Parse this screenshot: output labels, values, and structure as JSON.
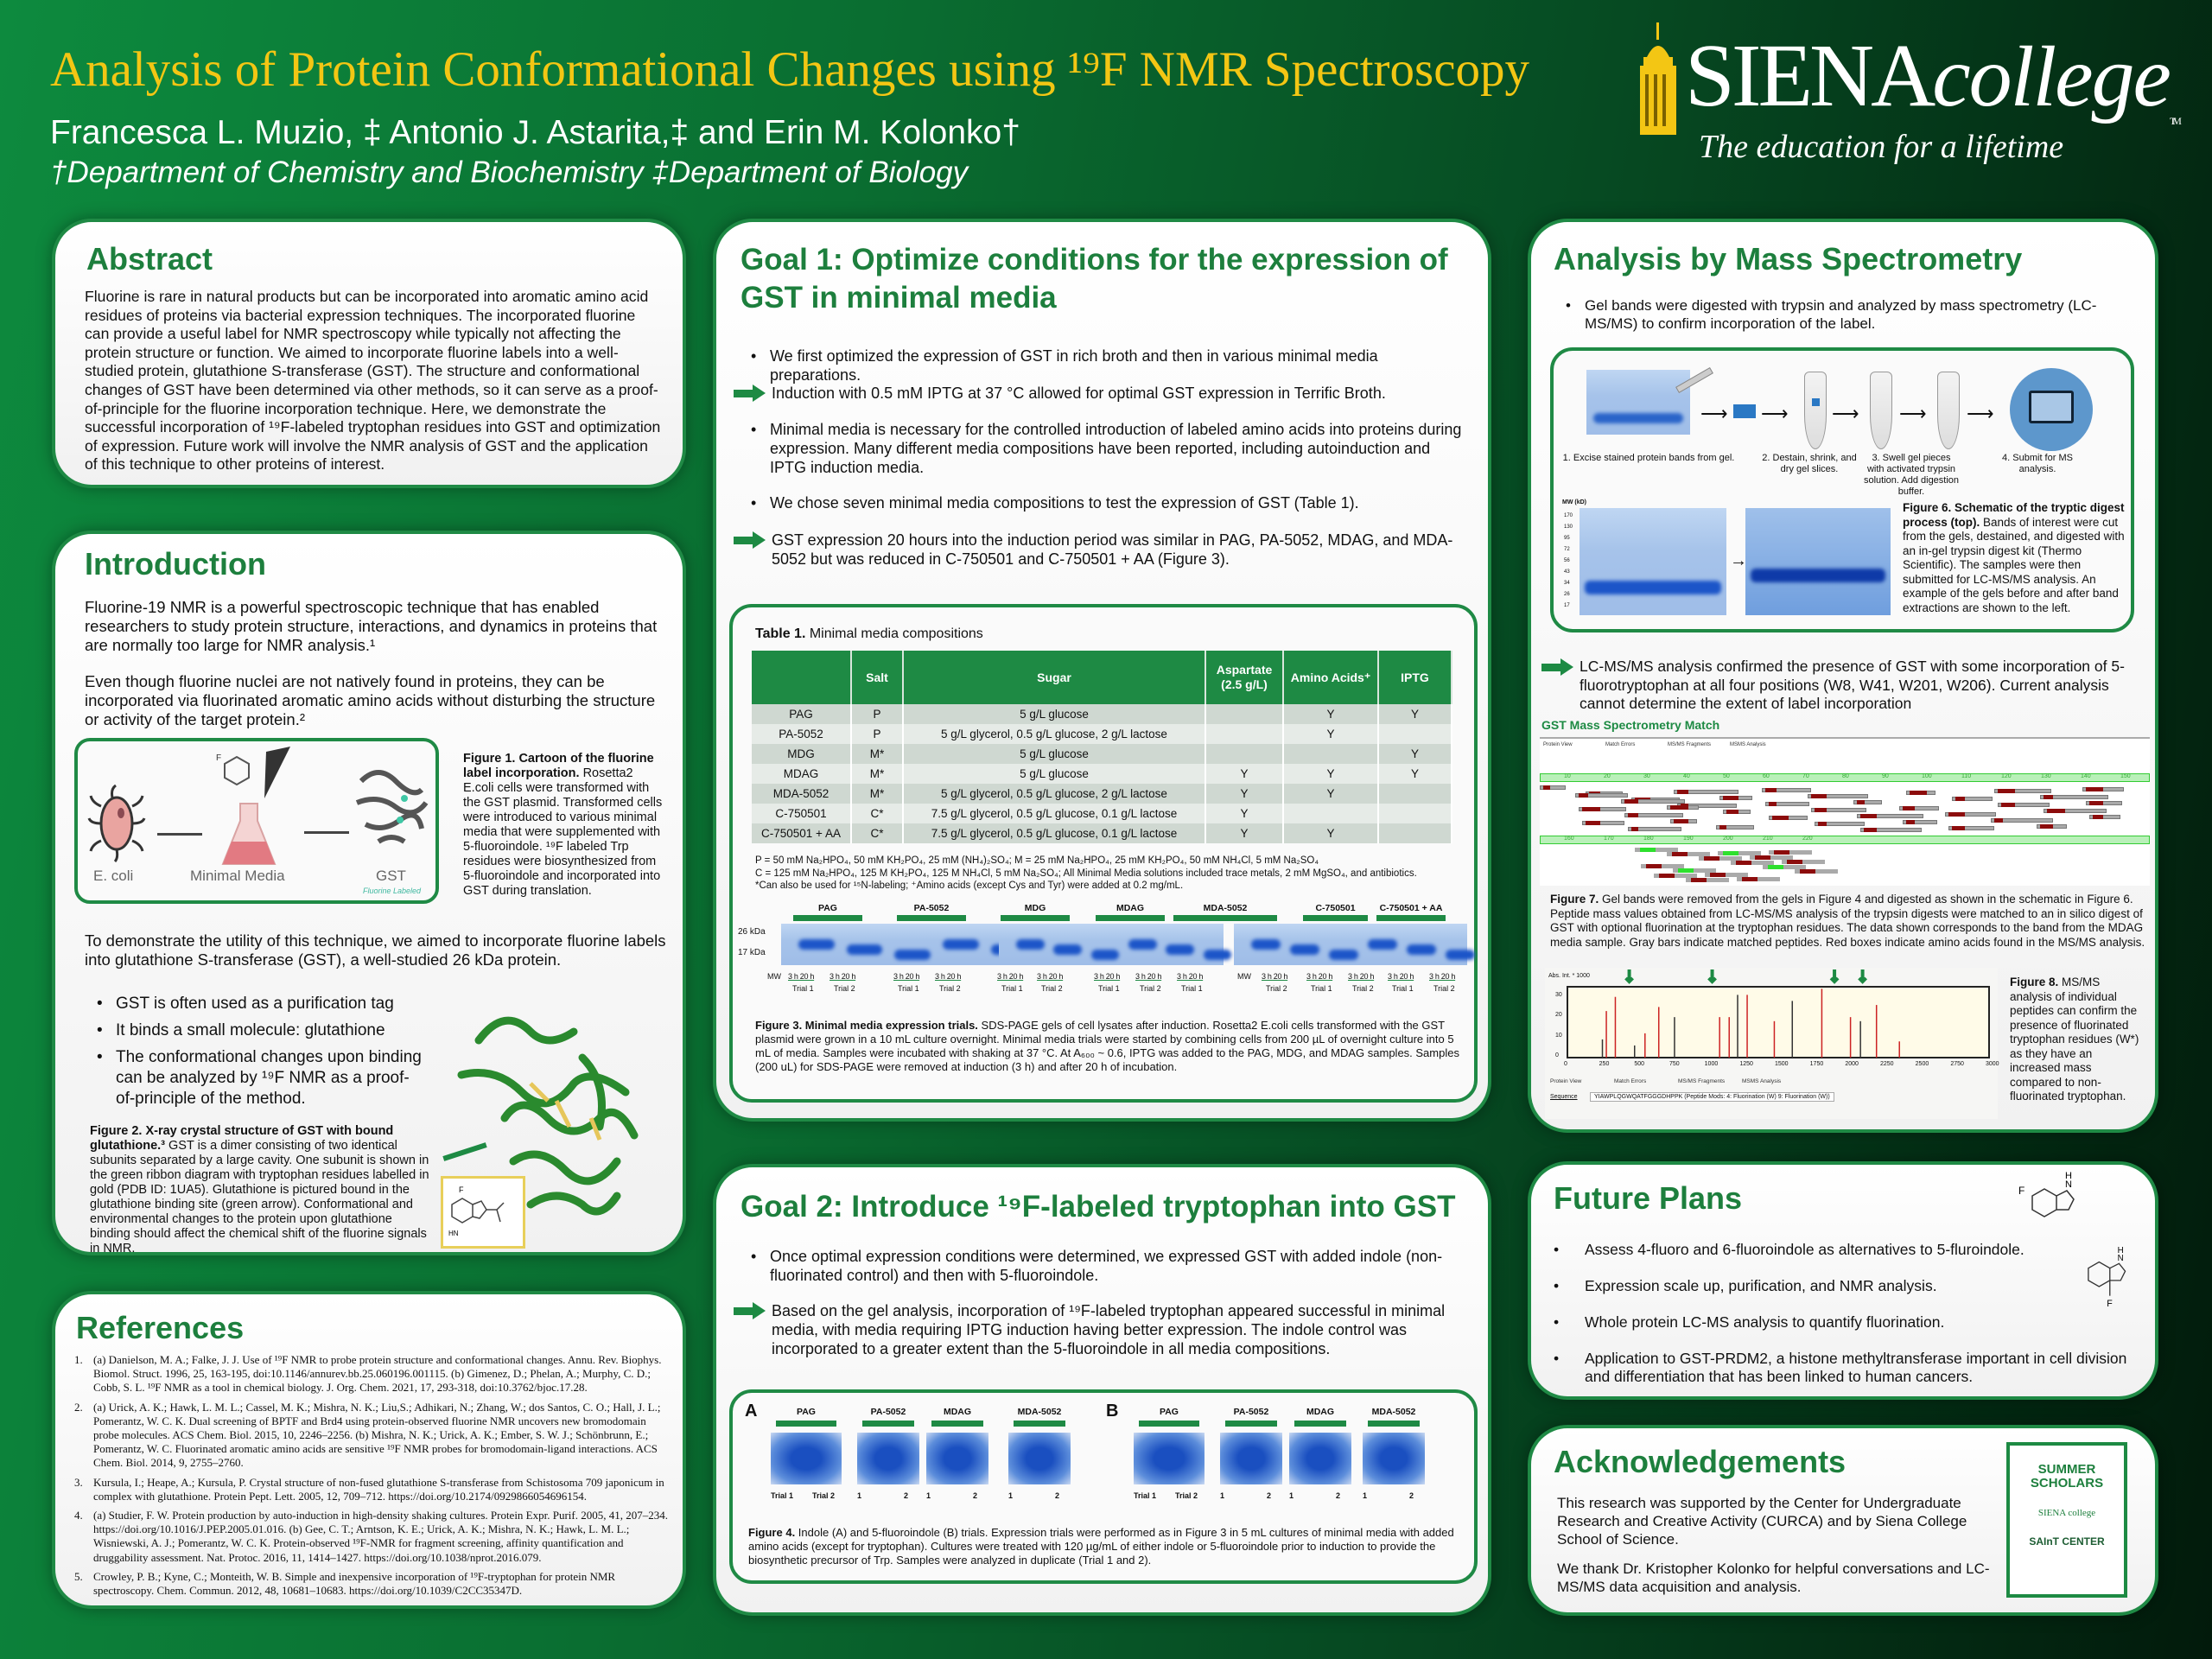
{
  "header": {
    "title": "Analysis of Protein Conformational Changes using ¹⁹F NMR Spectroscopy",
    "authors": "Francesca L. Muzio, ‡ Antonio J. Astarita,‡ and Erin M. Kolonko†",
    "departments": "†Department of Chemistry and Biochemistry ‡Department of Biology",
    "logo_word": "SIENA",
    "logo_word2": "college",
    "logo_tm": "TM",
    "tagline": "The education for a lifetime"
  },
  "colors": {
    "green": "#1d7f3d",
    "gold": "#f3c614",
    "border": "#1f8a45"
  },
  "abstract": {
    "title": "Abstract",
    "text": "Fluorine is rare in natural products but can be incorporated into aromatic amino acid residues of proteins via bacterial expression techniques. The incorporated fluorine can provide a useful label for NMR spectroscopy while typically not affecting the protein structure or function. We aimed to incorporate fluorine labels into a well-studied protein, glutathione S-transferase (GST). The structure and conformational changes of GST have been determined via other methods, so it can serve as a proof-of-principle for the fluorine incorporation technique. Here, we demonstrate the successful incorporation of ¹⁹F-labeled tryptophan residues into GST and optimization of expression. Future work will involve the NMR analysis of GST and the application of this technique to other proteins of interest."
  },
  "introduction": {
    "title": "Introduction",
    "p1": "Fluorine-19 NMR is a powerful spectroscopic technique that has enabled researchers to study protein structure, interactions, and dynamics in proteins that are normally too large for NMR analysis.¹",
    "p2": "Even though fluorine nuclei are not natively found in proteins, they can be incorporated via fluorinated aromatic amino acids without disturbing the structure or activity of the target protein.²",
    "fig1": {
      "ecoli": "E. coli",
      "media": "Minimal Media",
      "gst": "GST",
      "gst_sub": "Fluorine Labeled",
      "F": "F",
      "NH": "NH",
      "caption_bold": "Figure 1. Cartoon of the fluorine label incorporation.",
      "caption": " Rosetta2 E.coli cells were transformed with the GST plasmid. Transformed cells were introduced to various minimal media that were supplemented with 5-fluoroindole. ¹⁹F labeled Trp residues were biosynthesized from 5-fluoroindole and incorporated into GST during translation."
    },
    "p3": "To demonstrate the utility of this technique, we aimed to incorporate fluorine labels into glutathione S-transferase (GST), a well-studied 26 kDa protein.",
    "bullets": [
      "GST is often used as a purification tag",
      "It binds a small molecule: glutathione",
      "The conformational changes upon binding can be analyzed by ¹⁹F NMR as a proof-of-principle of the method."
    ],
    "fig2": {
      "caption_bold": "Figure 2. X-ray crystal structure of GST with bound glutathione.³",
      "caption": " GST is a dimer consisting of two identical subunits separated by a large cavity. One subunit is shown in the green ribbon diagram with tryptophan residues labelled in gold (PDB ID: 1UA5). Glutathione is pictured bound in the glutathione binding site (green arrow). Conformational and environmental changes to the protein upon glutathione binding should affect the chemical shift of the fluorine signals in NMR.",
      "F": "F",
      "HN": "HN"
    }
  },
  "references": {
    "title": "References",
    "items": [
      "(a) Danielson, M. A.; Falke, J. J. Use of ¹⁹F NMR to probe protein structure and conformational changes. Annu. Rev. Biophys. Biomol. Struct. 1996, 25, 163-195, doi:10.1146/annurev.bb.25.060196.001115. (b) Gimenez, D.; Phelan, A.; Murphy, C. D.; Cobb, S. L. ¹⁹F NMR as a tool in chemical biology. J. Org. Chem. 2021, 17, 293-318, doi:10.3762/bjoc.17.28.",
      "(a) Urick, A. K.; Hawk, L. M. L.; Cassel, M. K.; Mishra, N. K.; Liu,S.; Adhikari, N.; Zhang, W.; dos Santos, C. O.; Hall, J. L.; Pomerantz, W. C. K. Dual screening of BPTF and Brd4 using protein-observed fluorine NMR uncovers new bromodomain probe molecules. ACS Chem. Biol. 2015, 10, 2246–2256. (b) Mishra, N. K.; Urick, A. K.; Ember, S. W. J.; Schönbrunn, E.; Pomerantz, W. C. Fluorinated aromatic amino acids are sensitive ¹⁹F NMR probes for bromodomain-ligand interactions. ACS Chem. Biol. 2014, 9, 2755–2760.",
      "Kursula, I.; Heape, A.; Kursula, P. Crystal structure of non-fused glutathione S-transferase from Schistosoma 709 japonicum in complex with glutathione. Protein Pept. Lett. 2005, 12, 709–712. https://doi.org/10.2174/0929866054696154.",
      "(a) Studier, F. W. Protein production by auto-induction in high-density shaking cultures. Protein Expr. Purif. 2005, 41, 207–234. https://doi.org/10.1016/J.PEP.2005.01.016. (b) Gee, C. T.; Arntson, K. E.; Urick, A. K.; Mishra, N. K.; Hawk, L. M. L.; Wisniewski, A. J.; Pomerantz, W. C. K. Protein-observed ¹⁹F-NMR for fragment screening, affinity quantification and druggability assessment. Nat. Protoc. 2016, 11, 1414–1427. https://doi.org/10.1038/nprot.2016.079.",
      "Crowley, P. B.; Kyne, C.; Monteith, W. B. Simple and inexpensive incorporation of ¹⁹F-tryptophan for protein NMR spectroscopy. Chem. Commun. 2012, 48, 10681–10683. https://doi.org/10.1039/C2CC35347D."
    ]
  },
  "goal1": {
    "title": "Goal 1: Optimize conditions for the expression of GST in minimal media",
    "items": [
      {
        "type": "bullet",
        "text": "We first optimized the expression of GST in rich broth and then in various minimal media preparations."
      },
      {
        "type": "arrow",
        "text": "Induction with 0.5 mM IPTG at 37 °C allowed for optimal GST expression in Terrific Broth."
      },
      {
        "type": "bullet",
        "text": "Minimal media is necessary for the controlled introduction of labeled amino acids into proteins during expression. Many different media compositions have been reported, including autoinduction and IPTG induction media."
      },
      {
        "type": "bullet",
        "text": "We chose seven minimal media compositions to test the expression of GST (Table 1)."
      },
      {
        "type": "arrow",
        "text": "GST expression 20 hours into the induction period was similar in PAG, PA-5052, MDAG, and MDA-5052 but was reduced in C-750501 and C-750501 + AA (Figure 3)."
      }
    ],
    "table": {
      "caption_bold": "Table 1.",
      "caption": " Minimal media compositions",
      "headers": [
        "",
        "Salt",
        "Sugar",
        "Aspartate (2.5 g/L)",
        "Amino Acids⁺",
        "IPTG"
      ],
      "rows": [
        [
          "PAG",
          "P",
          "5 g/L glucose",
          "",
          "Y",
          "Y"
        ],
        [
          "PA-5052",
          "P",
          "5 g/L glycerol, 0.5 g/L glucose, 2 g/L lactose",
          "",
          "Y",
          ""
        ],
        [
          "MDG",
          "M*",
          "5 g/L glucose",
          "",
          "",
          "Y"
        ],
        [
          "MDAG",
          "M*",
          "5 g/L glucose",
          "Y",
          "Y",
          "Y"
        ],
        [
          "MDA-5052",
          "M*",
          "5 g/L glycerol, 0.5 g/L glucose, 2 g/L lactose",
          "Y",
          "Y",
          ""
        ],
        [
          "C-750501",
          "C*",
          "7.5 g/L glycerol, 0.5 g/L glucose, 0.1 g/L lactose",
          "Y",
          "",
          ""
        ],
        [
          "C-750501 + AA",
          "C*",
          "7.5 g/L glycerol, 0.5 g/L glucose, 0.1 g/L lactose",
          "Y",
          "Y",
          ""
        ]
      ],
      "notes": [
        "P = 50 mM Na₂HPO₄, 50 mM KH₂PO₄, 25 mM (NH₄)₂SO₄; M = 25 mM Na₂HPO₄, 25 mM KH₂PO₄, 50 mM NH₄Cl, 5 mM Na₂SO₄",
        "C = 125 mM Na₂HPO₄, 125 M KH₂PO₄, 125 M NH₄Cl, 5 mM Na₂SO₄; All Minimal Media solutions included trace metals, 2 mM MgSO₄, and antibiotics.",
        "*Can also be used for ¹⁵N-labeling; ⁺Amino acids (except Cys and Tyr) were added at 0.2 mg/mL."
      ]
    },
    "fig3": {
      "groups": [
        "PAG",
        "PA-5052",
        "MDG",
        "MDAG",
        "MDA-5052",
        "C-750501",
        "C-750501 + AA"
      ],
      "kda": [
        "26 kDa",
        "17 kDa"
      ],
      "mw": "MW",
      "lane": "3 h  20 h",
      "trial1": "Trial 1",
      "trial2": "Trial 2",
      "caption_bold": "Figure 3. Minimal media expression trials.",
      "caption": " SDS-PAGE gels of cell lysates after induction. Rosetta2 E.coli cells transformed with the GST plasmid were grown in a 10 mL culture overnight. Minimal media trials were started by combining cells from 200 µL of overnight culture into 5 mL of media. Samples were incubated with shaking at 37 °C. At A₆₀₀ ~ 0.6, IPTG was added to the PAG, MDG, and MDAG samples. Samples (200 uL) for SDS-PAGE were removed at induction (3 h) and after 20 h of incubation."
    }
  },
  "goal2": {
    "title": "Goal 2: Introduce ¹⁹F-labeled tryptophan into GST",
    "items": [
      {
        "type": "bullet",
        "text": "Once optimal expression conditions were determined, we expressed GST with added indole (non-fluorinated control) and then with 5-fluoroindole."
      },
      {
        "type": "arrow",
        "text": "Based on the gel analysis, incorporation of ¹⁹F-labeled tryptophan appeared successful in minimal media, with media requiring IPTG induction having better expression. The indole control was incorporated to a greater extent than the 5-fluoroindole in all media compositions."
      }
    ],
    "fig4": {
      "A": "A",
      "B": "B",
      "groups": [
        "PAG",
        "PA-5052",
        "MDAG",
        "MDA-5052"
      ],
      "lanes_first": [
        "Trial 1",
        "Trial 2"
      ],
      "lanes": [
        "1",
        "2"
      ],
      "caption_bold": "Figure 4.",
      "caption": " Indole (A) and 5-fluoroindole (B) trials. Expression trials were performed as in Figure 3 in 5 mL cultures of minimal media with added amino acids (except for tryptophan). Cultures were treated with 120 µg/mL of either indole or 5-fluoroindole prior to induction to provide the biosynthetic precursor of Trp. Samples were analyzed in duplicate (Trial 1 and 2)."
    }
  },
  "mass_spec": {
    "title": "Analysis by Mass Spectrometry",
    "bullet": "Gel bands were digested with trypsin and analyzed by mass spectrometry (LC-MS/MS) to confirm incorporation of the label.",
    "fig6": {
      "steps": [
        "1. Excise stained protein bands from gel.",
        "2. Destain, shrink, and dry gel slices.",
        "3. Swell gel pieces with activated trypsin solution. Add digestion buffer.",
        "4. Submit for MS analysis."
      ],
      "mw_label": "MW (kD)",
      "mw_ticks": [
        "170",
        "130",
        "95",
        "72",
        "56",
        "43",
        "34",
        "26",
        "17"
      ],
      "caption_bold": "Figure 6. Schematic of the tryptic digest process (top).",
      "caption": " Bands of interest were cut from the gels, destained, and digested with an in-gel trypsin digest kit (Thermo Scientific). The samples were then submitted for LC-MS/MS analysis. An example of the gels before and after band extractions are shown to the left."
    },
    "arrow": "LC-MS/MS analysis confirmed the presence of GST with some incorporation of 5-fluorotryptophan at all four positions (W8, W41, W201, W206). Current analysis cannot determine the extent of label incorporation",
    "fig7": {
      "heading": "GST Mass Spectrometry Match",
      "tabs": [
        "Protein View",
        "Match Errors",
        "MS/MS Fragments",
        "MSMS Analysis"
      ],
      "ruler1": [
        "10",
        "20",
        "30",
        "40",
        "50",
        "60",
        "70",
        "80",
        "90",
        "100",
        "110",
        "120",
        "130",
        "140",
        "150"
      ],
      "ruler2": [
        "160",
        "170",
        "180",
        "190",
        "200",
        "210",
        "220"
      ],
      "caption_bold": "Figure 7.",
      "caption": " Gel bands were removed from the gels in Figure 4 and digested as shown in the schematic in Figure 6. Peptide mass values obtained from LC-MS/MS analysis of the trypsin digests were matched to an in silico digest of GST with optional fluorination at the tryptophan residues. The data shown corresponds to the band from the MDAG media sample. Gray bars indicate matched peptides. Red boxes indicate amino acids found in the MS/MS analysis."
    },
    "fig8": {
      "y_label": "Abs. Int. * 1000",
      "x_ticks": [
        "0",
        "250",
        "500",
        "750",
        "1000",
        "1250",
        "1500",
        "1750",
        "2000",
        "2250",
        "2500",
        "2750",
        "3000"
      ],
      "y_ticks": [
        "0",
        "10",
        "20",
        "30"
      ],
      "tabs": [
        "Protein View",
        "Match Errors",
        "MS/MS Fragments",
        "MSMS Analysis"
      ],
      "sequence_label": "Sequence",
      "sequence": "YIAWPLQGWQATFGGGDHPPK (Peptide Mods: 4: Fluorination (W) 9: Fluorination (W))",
      "caption_bold": "Figure 8.",
      "caption": " MS/MS analysis of individual peptides can confirm the presence of fluorinated tryptophan residues (W*) as they have an increased mass compared to non-fluorinated tryptophan."
    }
  },
  "future": {
    "title": "Future Plans",
    "items": [
      "Assess 4-fluoro and 6-fluoroindole as alternatives to 5-fluroindole.",
      "Expression scale up, purification, and NMR analysis.",
      "Whole protein LC-MS analysis to quantify fluorination.",
      "Application to GST-PRDM2, a histone methyltransferase important in cell division and differentiation that has been linked to human cancers."
    ],
    "F": "F",
    "H": "H",
    "N": "N"
  },
  "acknowledgements": {
    "title": "Acknowledgements",
    "p1": "This research was supported by the Center for Undergraduate Research and Creative Activity (CURCA) and by Siena College School of Science.",
    "p2": "We thank Dr. Kristopher Kolonko for helpful conversations and LC-MS/MS data acquisition and analysis.",
    "logos": [
      "SUMMER SCHOLARS",
      "SIENA college",
      "SAInT CENTER"
    ]
  }
}
